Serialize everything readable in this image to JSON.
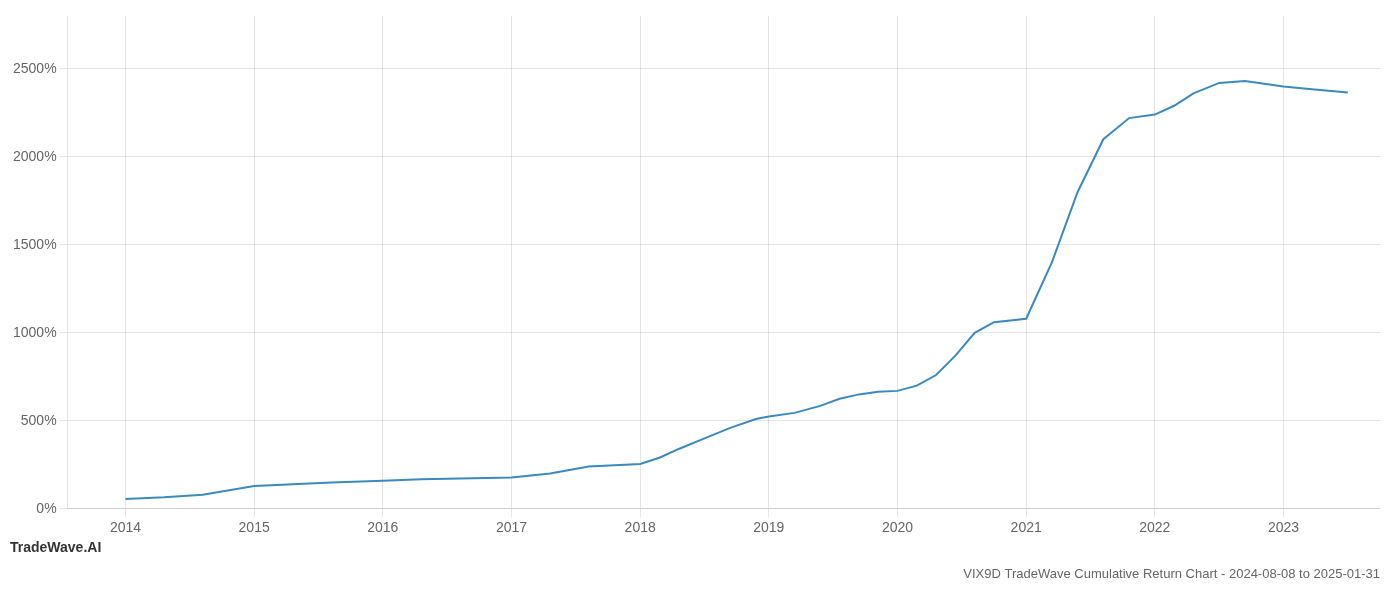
{
  "chart_data": {
    "type": "line",
    "title": "VIX9D TradeWave Cumulative Return Chart - 2024-08-08 to 2025-01-31",
    "subtitle": "TradeWave.AI",
    "color": "#3a8abf",
    "x": [
      2014.0,
      2014.3,
      2014.6,
      2015.0,
      2015.3,
      2015.6,
      2016.0,
      2016.3,
      2016.6,
      2017.0,
      2017.3,
      2017.6,
      2018.0,
      2018.15,
      2018.3,
      2018.5,
      2018.7,
      2018.9,
      2019.0,
      2019.2,
      2019.4,
      2019.55,
      2019.7,
      2019.85,
      2020.0,
      2020.15,
      2020.3,
      2020.45,
      2020.6,
      2020.75,
      2021.0,
      2021.2,
      2021.4,
      2021.6,
      2021.8,
      2022.0,
      2022.15,
      2022.3,
      2022.5,
      2022.7,
      2022.85,
      2023.0,
      2023.2,
      2023.5
    ],
    "values": [
      55,
      65,
      80,
      130,
      140,
      150,
      160,
      168,
      172,
      178,
      200,
      240,
      255,
      290,
      340,
      400,
      460,
      510,
      525,
      545,
      585,
      625,
      650,
      665,
      670,
      700,
      760,
      870,
      1000,
      1060,
      1080,
      1400,
      1800,
      2100,
      2220,
      2240,
      2290,
      2360,
      2420,
      2430,
      2415,
      2400,
      2385,
      2365
    ],
    "xlim": [
      2013.55,
      2023.75
    ],
    "xticks": [
      2014,
      2015,
      2016,
      2017,
      2018,
      2019,
      2020,
      2021,
      2022,
      2023
    ],
    "ylim": [
      0,
      2800
    ],
    "yticks": [
      {
        "value": 0,
        "label": "0%"
      },
      {
        "value": 500,
        "label": "500%"
      },
      {
        "value": 1000,
        "label": "1000%"
      },
      {
        "value": 1500,
        "label": "1500%"
      },
      {
        "value": 2000,
        "label": "2000%"
      },
      {
        "value": 2500,
        "label": "2500%"
      }
    ],
    "grid": true
  }
}
